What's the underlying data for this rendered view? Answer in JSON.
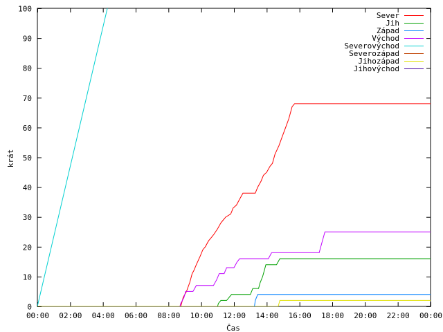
{
  "chart_data": {
    "type": "line",
    "xlabel": "Čas",
    "ylabel": "krát",
    "xlim": [
      0,
      24
    ],
    "ylim": [
      0,
      100
    ],
    "x_ticks": [
      "00:00",
      "02:00",
      "04:00",
      "06:00",
      "08:00",
      "10:00",
      "12:00",
      "14:00",
      "16:00",
      "18:00",
      "20:00",
      "22:00",
      "00:00"
    ],
    "y_ticks": [
      0,
      10,
      20,
      30,
      40,
      50,
      60,
      70,
      80,
      90,
      100
    ],
    "grid": false,
    "legend_position": "top-right",
    "series": [
      {
        "name": "Sever",
        "color": "#ff0000",
        "points": [
          [
            0,
            0
          ],
          [
            8.75,
            0
          ],
          [
            8.8,
            1
          ],
          [
            8.9,
            3
          ],
          [
            9.1,
            5
          ],
          [
            9.3,
            8
          ],
          [
            9.45,
            11
          ],
          [
            9.55,
            12
          ],
          [
            9.7,
            14
          ],
          [
            9.95,
            17
          ],
          [
            10.1,
            19
          ],
          [
            10.25,
            20
          ],
          [
            10.45,
            22
          ],
          [
            10.6,
            23
          ],
          [
            10.75,
            24
          ],
          [
            11.0,
            26
          ],
          [
            11.2,
            28
          ],
          [
            11.35,
            29
          ],
          [
            11.5,
            30
          ],
          [
            11.8,
            31
          ],
          [
            11.95,
            33
          ],
          [
            12.15,
            34
          ],
          [
            12.35,
            36
          ],
          [
            12.55,
            38
          ],
          [
            13.3,
            38
          ],
          [
            13.45,
            40
          ],
          [
            13.65,
            42
          ],
          [
            13.8,
            44
          ],
          [
            14.0,
            45
          ],
          [
            14.2,
            47
          ],
          [
            14.35,
            48
          ],
          [
            14.5,
            51
          ],
          [
            14.75,
            54
          ],
          [
            14.95,
            57
          ],
          [
            15.15,
            60
          ],
          [
            15.35,
            63
          ],
          [
            15.55,
            67
          ],
          [
            15.7,
            68
          ],
          [
            24,
            68
          ]
        ]
      },
      {
        "name": "Jih",
        "color": "#00a000",
        "points": [
          [
            0,
            0
          ],
          [
            11.0,
            0
          ],
          [
            11.05,
            1
          ],
          [
            11.2,
            2
          ],
          [
            11.55,
            2
          ],
          [
            11.7,
            3
          ],
          [
            11.85,
            4
          ],
          [
            13.0,
            4
          ],
          [
            13.15,
            6
          ],
          [
            13.5,
            6
          ],
          [
            13.6,
            8
          ],
          [
            13.75,
            10
          ],
          [
            13.85,
            12
          ],
          [
            13.95,
            14
          ],
          [
            14.6,
            14
          ],
          [
            14.8,
            16
          ],
          [
            24,
            16
          ]
        ]
      },
      {
        "name": "Západ",
        "color": "#0080ff",
        "points": [
          [
            0,
            0
          ],
          [
            13.25,
            0
          ],
          [
            13.3,
            2
          ],
          [
            13.45,
            4
          ],
          [
            24,
            4
          ]
        ]
      },
      {
        "name": "Východ",
        "color": "#c000ff",
        "points": [
          [
            0,
            0
          ],
          [
            8.7,
            0
          ],
          [
            8.75,
            1
          ],
          [
            8.95,
            3
          ],
          [
            9.05,
            5
          ],
          [
            9.5,
            5
          ],
          [
            9.7,
            7
          ],
          [
            10.75,
            7
          ],
          [
            10.95,
            9
          ],
          [
            11.1,
            11
          ],
          [
            11.4,
            11
          ],
          [
            11.55,
            13
          ],
          [
            12.0,
            13
          ],
          [
            12.2,
            15
          ],
          [
            12.35,
            16
          ],
          [
            14.1,
            16
          ],
          [
            14.3,
            18
          ],
          [
            17.2,
            18
          ],
          [
            17.35,
            21
          ],
          [
            17.45,
            23
          ],
          [
            17.55,
            25
          ],
          [
            24,
            25
          ]
        ]
      },
      {
        "name": "Severovýchod",
        "color": "#00d0d0",
        "points": [
          [
            0,
            0
          ],
          [
            4.27,
            100
          ]
        ]
      },
      {
        "name": "Severozápad",
        "color": "#c04000",
        "points": []
      },
      {
        "name": "Jihozápad",
        "color": "#e0e000",
        "points": [
          [
            0,
            0
          ],
          [
            14.7,
            0
          ],
          [
            14.8,
            2
          ],
          [
            24,
            2
          ]
        ]
      },
      {
        "name": "Jihovýchod",
        "color": "#4000a0",
        "points": []
      }
    ]
  }
}
